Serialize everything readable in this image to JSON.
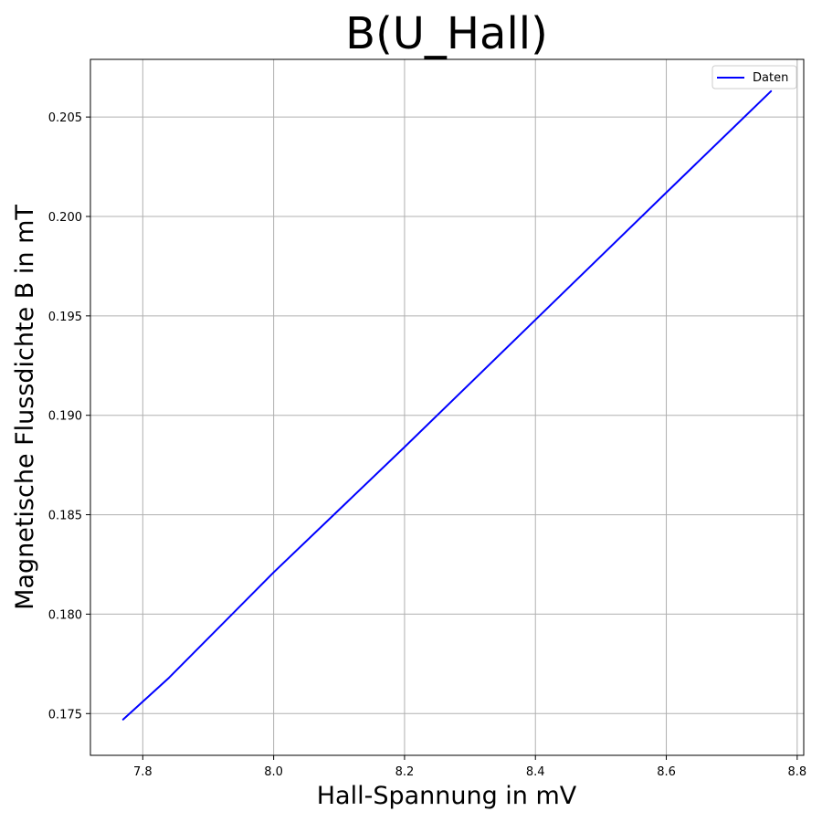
{
  "chart_data": {
    "type": "line",
    "title": "B(U_Hall)",
    "xlabel": "Hall-Spannung in mV",
    "ylabel": "Magnetische Flussdichte B in mT",
    "xlim": [
      7.72,
      8.81
    ],
    "ylim": [
      0.1729,
      0.2079
    ],
    "xticks": [
      7.8,
      8.0,
      8.2,
      8.4,
      8.6,
      8.8
    ],
    "xtick_labels": [
      "7.8",
      "8.0",
      "8.2",
      "8.4",
      "8.6",
      "8.8"
    ],
    "yticks": [
      0.175,
      0.18,
      0.185,
      0.19,
      0.195,
      0.2,
      0.205
    ],
    "ytick_labels": [
      "0.175",
      "0.180",
      "0.185",
      "0.190",
      "0.195",
      "0.200",
      "0.205"
    ],
    "grid": true,
    "legend": {
      "position": "top-right"
    },
    "series": [
      {
        "name": "Daten",
        "color": "#0000ff",
        "x": [
          7.77,
          7.84,
          8.0,
          8.2,
          8.4,
          8.6,
          8.76
        ],
        "y": [
          0.1747,
          0.1768,
          0.1821,
          0.1884,
          0.1948,
          0.2012,
          0.2063
        ]
      }
    ]
  }
}
